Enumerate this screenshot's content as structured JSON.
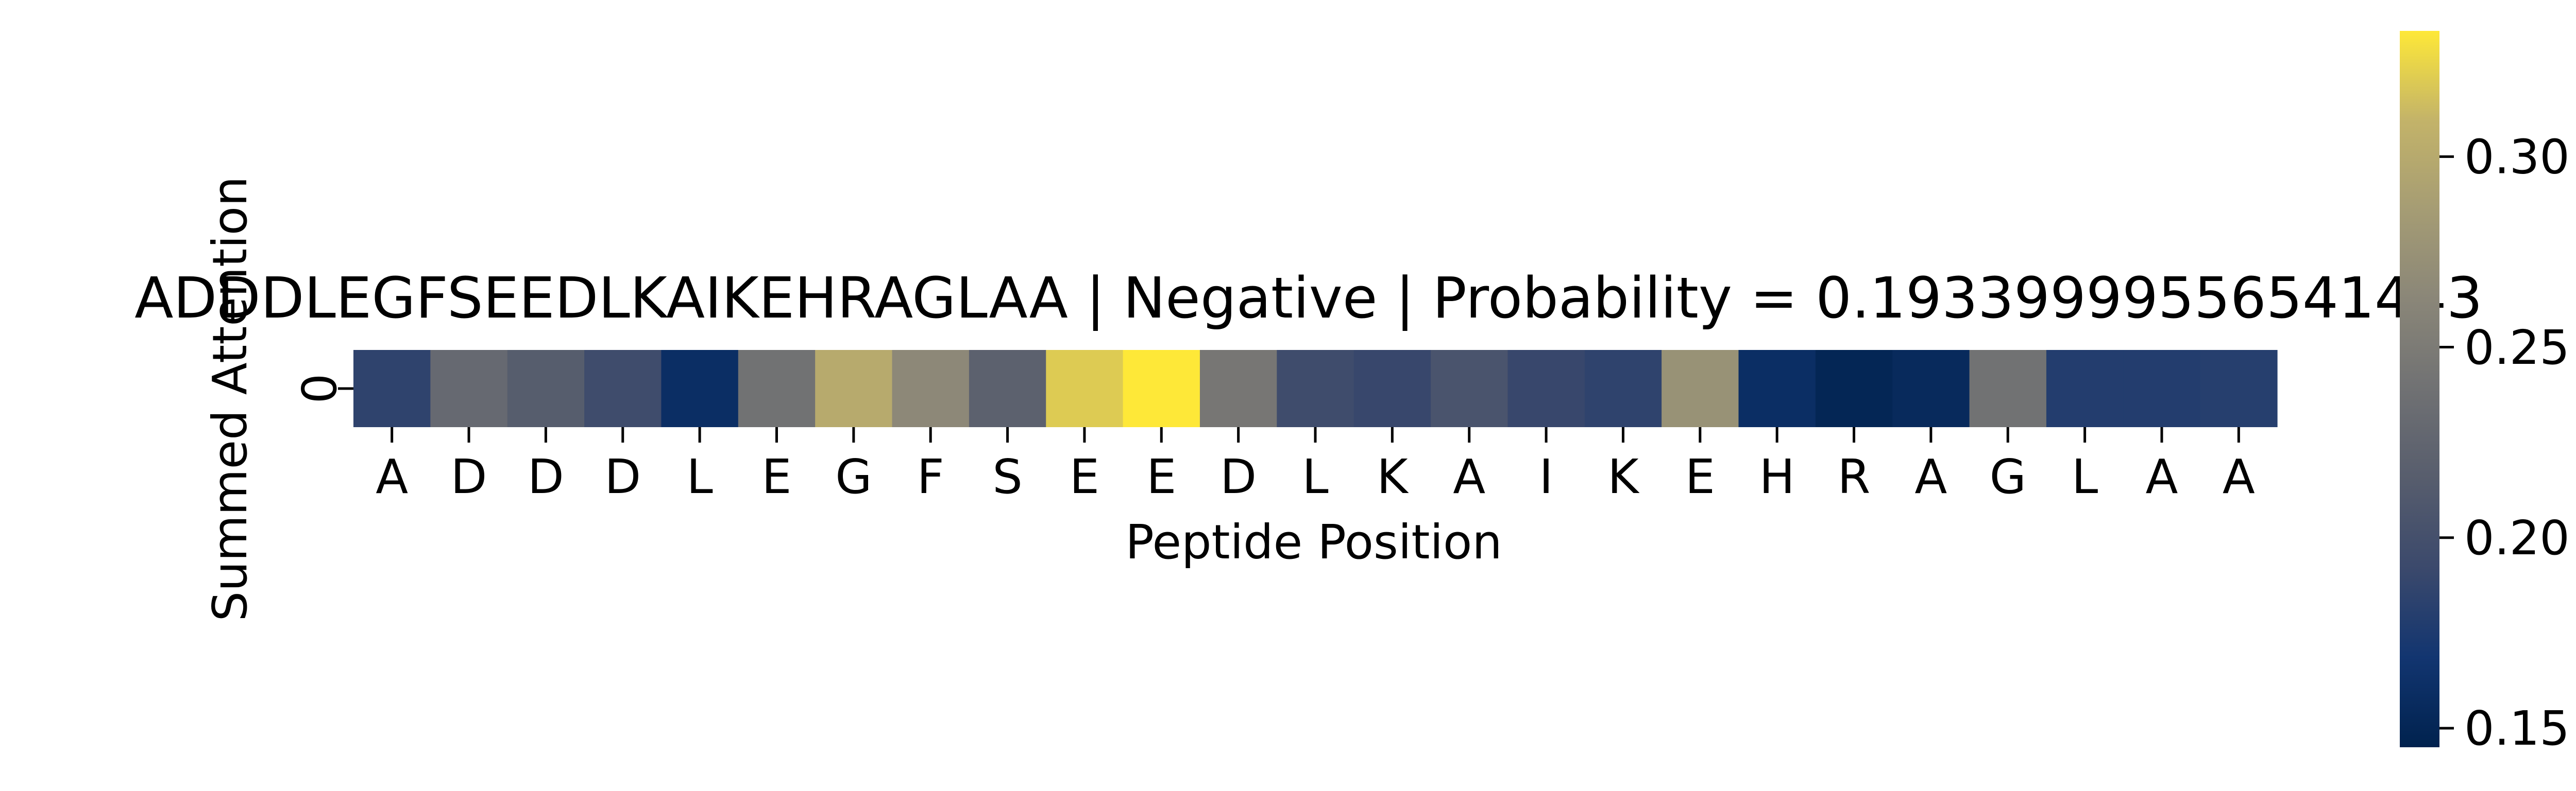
{
  "chart_data": {
    "type": "heatmap",
    "title": "ADDDLEGFSEEDLKAIKEHRAGLAA | Negative | Probability = 0.19339999556541443",
    "xlabel": "Peptide Position",
    "ylabel": "Summed Attention",
    "y_categories": [
      "0"
    ],
    "x_categories": [
      "A",
      "D",
      "D",
      "D",
      "L",
      "E",
      "G",
      "F",
      "S",
      "E",
      "E",
      "D",
      "L",
      "K",
      "A",
      "I",
      "K",
      "E",
      "H",
      "R",
      "A",
      "G",
      "L",
      "A",
      "A"
    ],
    "values": [
      [
        0.185,
        0.23,
        0.215,
        0.195,
        0.16,
        0.24,
        0.3,
        0.265,
        0.22,
        0.32,
        0.333,
        0.245,
        0.195,
        0.19,
        0.205,
        0.19,
        0.185,
        0.275,
        0.16,
        0.15,
        0.155,
        0.24,
        0.178,
        0.178,
        0.18
      ]
    ],
    "colorbar": {
      "colormap": "cividis",
      "vmin": 0.145,
      "vmax": 0.333,
      "ticks": [
        "0.15",
        "0.20",
        "0.25",
        "0.30"
      ]
    }
  }
}
